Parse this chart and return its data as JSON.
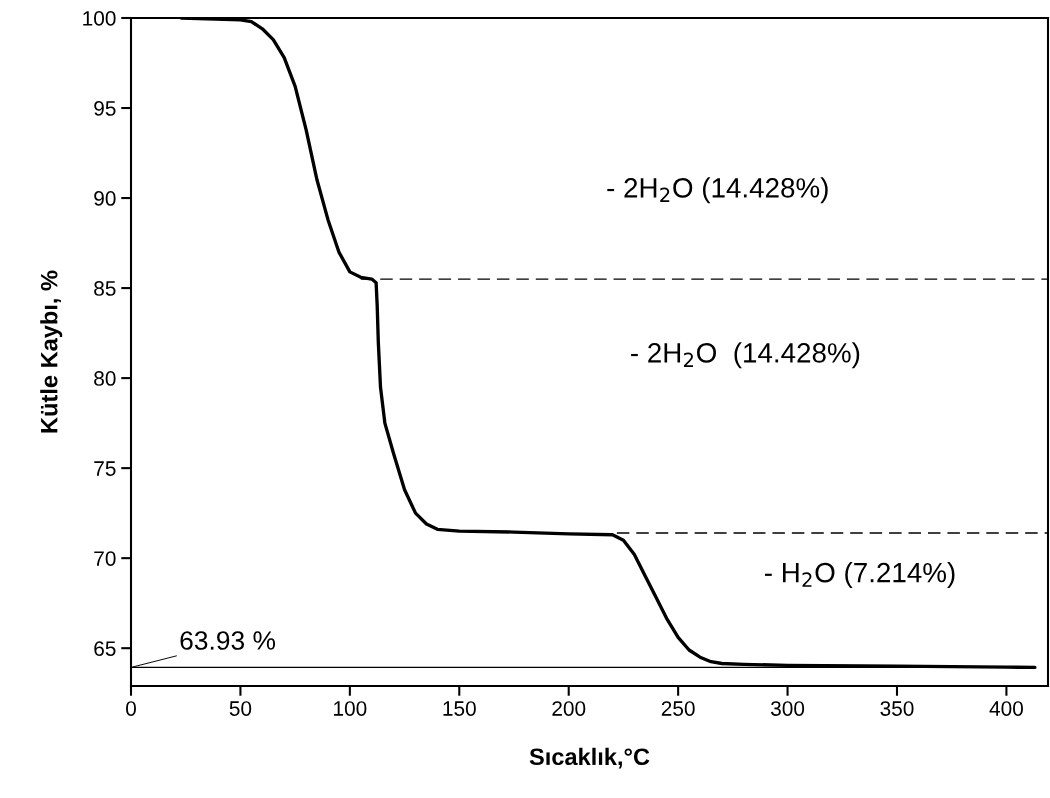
{
  "chart_data": {
    "type": "line",
    "xlabel": "Sıcaklık,°C",
    "ylabel": "Kütle Kaybı, %",
    "xlim": [
      0,
      419
    ],
    "ylim": [
      62.9,
      100
    ],
    "xticks": [
      0,
      50,
      100,
      150,
      200,
      250,
      300,
      350,
      400
    ],
    "yticks": [
      65,
      70,
      75,
      80,
      85,
      90,
      95,
      100
    ],
    "grid": false,
    "legend": false,
    "marker": "none",
    "series": [
      {
        "color": "#000000",
        "line_style": "solid",
        "x": [
          23,
          50,
          55,
          60,
          65,
          70,
          75,
          80,
          85,
          90,
          95,
          100,
          105,
          110,
          112,
          112.5,
          113,
          114,
          116,
          120,
          125,
          130,
          135,
          140,
          150,
          175,
          200,
          220,
          225,
          230,
          235,
          240,
          245,
          250,
          255,
          260,
          265,
          270,
          280,
          300,
          350,
          400,
          413
        ],
        "values": [
          100,
          99.9,
          99.8,
          99.4,
          98.8,
          97.8,
          96.2,
          93.8,
          91,
          88.8,
          87,
          85.9,
          85.6,
          85.5,
          85.3,
          84,
          82,
          79.5,
          77.5,
          75.8,
          73.8,
          72.5,
          71.9,
          71.6,
          71.5,
          71.45,
          71.35,
          71.3,
          71,
          70.2,
          69,
          67.8,
          66.6,
          65.6,
          64.9,
          64.5,
          64.25,
          64.15,
          64.1,
          64.05,
          64.0,
          63.95,
          63.93
        ]
      },
      {
        "color": "#000000",
        "line_style": "dashed",
        "x": [
          105,
          419
        ],
        "values": [
          85.5,
          85.5
        ]
      },
      {
        "color": "#000000",
        "line_style": "dashed",
        "x": [
          222,
          419
        ],
        "values": [
          71.4,
          71.4
        ]
      }
    ],
    "ref_lines": [
      {
        "axis": "y",
        "value": 63.93,
        "color": "#000000",
        "line_style": "solid"
      }
    ],
    "annotations": [
      "- 2H$_{2}$O (14.428%)",
      "- 2H$_{2}$O  (14.428%)",
      "- H$_{2}$O (7.214%)",
      {
        "text": "63.93 %",
        "x": 0,
        "y": 63.93
      }
    ]
  }
}
